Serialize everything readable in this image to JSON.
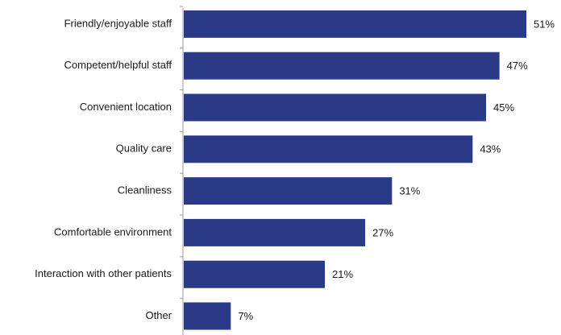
{
  "chart_data": {
    "type": "bar",
    "orientation": "horizontal",
    "categories": [
      "Friendly/enjoyable staff",
      "Competent/helpful staff",
      "Convenient location",
      "Quality care",
      "Cleanliness",
      "Comfortable environment",
      "Interaction with other patients",
      "Other"
    ],
    "values": [
      51,
      47,
      45,
      43,
      31,
      27,
      21,
      7
    ],
    "value_labels": [
      "51%",
      "47%",
      "45%",
      "43%",
      "31%",
      "27%",
      "21%",
      "7%"
    ],
    "xlim": [
      0,
      55
    ],
    "grid": false,
    "legend": "none",
    "bar_color": "#2b3a86"
  }
}
